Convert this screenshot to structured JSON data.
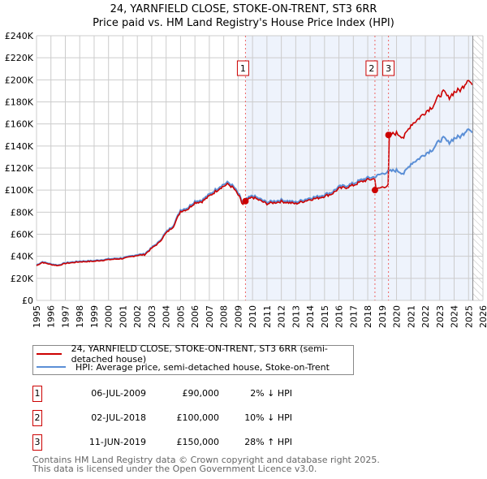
{
  "chart_data": {
    "type": "line",
    "title": "24, YARNFIELD CLOSE, STOKE-ON-TRENT, ST3 6RR",
    "subtitle": "Price paid vs. HM Land Registry's House Price Index (HPI)",
    "xlim": [
      1995,
      2026
    ],
    "ylim": [
      0,
      240000
    ],
    "x_ticks": [
      "1995",
      "1996",
      "1997",
      "1998",
      "1999",
      "2000",
      "2001",
      "2002",
      "2003",
      "2004",
      "2005",
      "2006",
      "2007",
      "2008",
      "2009",
      "2010",
      "2011",
      "2012",
      "2013",
      "2014",
      "2015",
      "2016",
      "2017",
      "2018",
      "2019",
      "2020",
      "2021",
      "2022",
      "2023",
      "2024",
      "2025",
      "2026"
    ],
    "y_ticks": [
      "£0",
      "£20K",
      "£40K",
      "£60K",
      "£80K",
      "£100K",
      "£120K",
      "£140K",
      "£160K",
      "£180K",
      "£200K",
      "£220K",
      "£240K"
    ],
    "grid": true,
    "series": [
      {
        "name": "HPI: Average price, semi-detached house, Stoke-on-Trent",
        "color": "#5b8fd6",
        "x": [
          1995,
          1995.4,
          1996,
          1996.5,
          1997,
          1998,
          1999,
          2000,
          2001,
          2002,
          2002.5,
          2003,
          2003.5,
          2004,
          2004.5,
          2005,
          2005.5,
          2006,
          2006.5,
          2007,
          2007.3,
          2007.8,
          2008.3,
          2008.7,
          2009.1,
          2009.3,
          2009.6,
          2010,
          2010.5,
          2011,
          2011.5,
          2012,
          2012.5,
          2013,
          2013.5,
          2014,
          2014.5,
          2015,
          2015.5,
          2016,
          2016.5,
          2017,
          2017.5,
          2018,
          2018.5,
          2019,
          2019.5,
          2020,
          2020.5,
          2021,
          2021.5,
          2022,
          2022.5,
          2023,
          2023.3,
          2023.6,
          2024,
          2024.5,
          2025,
          2025.3
        ],
        "y": [
          32000,
          35000,
          33000,
          32000,
          34000,
          35500,
          36000,
          37500,
          38500,
          41500,
          42000,
          48000,
          53000,
          62000,
          68000,
          82000,
          84000,
          90000,
          91000,
          96000,
          99000,
          104000,
          107000,
          103000,
          95000,
          88000,
          92000,
          95000,
          92000,
          89000,
          90000,
          91000,
          90000,
          89000,
          91000,
          93000,
          94000,
          96000,
          98000,
          103000,
          104000,
          106000,
          109000,
          111000,
          112000,
          115000,
          117000,
          118000,
          115000,
          124000,
          128000,
          133000,
          137000,
          145000,
          147000,
          143000,
          147000,
          149000,
          157000,
          151000
        ]
      },
      {
        "name": "24, YARNFIELD CLOSE, STOKE-ON-TRENT, ST3 6RR (semi-detached house)",
        "color": "#cc0000"
      }
    ],
    "sales": [
      {
        "label": "1",
        "x": 2009.51,
        "price": 90000,
        "date": "06-JUL-2009",
        "price_text": "£90,000",
        "hpi_text": "2% ↓ HPI"
      },
      {
        "label": "2",
        "x": 2018.5,
        "price": 100000,
        "date": "02-JUL-2018",
        "price_text": "£100,000",
        "hpi_text": "10% ↓ HPI"
      },
      {
        "label": "3",
        "x": 2019.44,
        "price": 150000,
        "date": "11-JUN-2019",
        "price_text": "£150,000",
        "hpi_text": "28% ↑ HPI"
      }
    ],
    "data_end": 2025.3
  },
  "footer": {
    "line1": "Contains HM Land Registry data © Crown copyright and database right 2025.",
    "line2": "This data is licensed under the Open Government Licence v3.0."
  }
}
